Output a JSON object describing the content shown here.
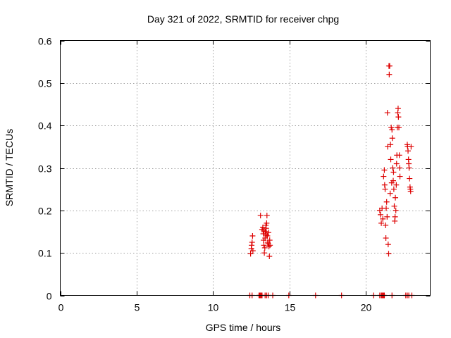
{
  "chart_data": {
    "type": "scatter",
    "title": "Day 321 of 2022, SRMTID for receiver chpg",
    "xlabel": "GPS time / hours",
    "ylabel": "SRMTID / TECUs",
    "xlim": [
      0,
      24.2
    ],
    "ylim": [
      0,
      0.6
    ],
    "xticks": [
      0,
      5,
      10,
      15,
      20
    ],
    "xtick_labels": [
      "0",
      "5",
      "10",
      "15",
      "20"
    ],
    "yticks": [
      0,
      0.1,
      0.2,
      0.3,
      0.4,
      0.5,
      0.6
    ],
    "ytick_labels": [
      "0",
      "0.1",
      "0.2",
      "0.3",
      "0.4",
      "0.5",
      "0.6"
    ],
    "grid": true,
    "legend": "none",
    "marker": "plus",
    "point_color": "#dd0000",
    "points": [
      [
        12.45,
        0.098
      ],
      [
        12.5,
        0.11
      ],
      [
        12.52,
        0.118
      ],
      [
        12.55,
        0.125
      ],
      [
        12.58,
        0.14
      ],
      [
        12.6,
        0.105
      ],
      [
        13.1,
        0.188
      ],
      [
        13.2,
        0.155
      ],
      [
        13.25,
        0.16
      ],
      [
        13.28,
        0.145
      ],
      [
        13.3,
        0.13
      ],
      [
        13.32,
        0.118
      ],
      [
        13.35,
        0.1
      ],
      [
        13.38,
        0.112
      ],
      [
        13.4,
        0.135
      ],
      [
        13.42,
        0.15
      ],
      [
        13.45,
        0.165
      ],
      [
        13.47,
        0.158
      ],
      [
        13.5,
        0.17
      ],
      [
        13.52,
        0.188
      ],
      [
        13.55,
        0.14
      ],
      [
        13.57,
        0.125
      ],
      [
        13.6,
        0.122
      ],
      [
        13.62,
        0.148
      ],
      [
        13.65,
        0.115
      ],
      [
        13.68,
        0.092
      ],
      [
        13.7,
        0.13
      ],
      [
        13.72,
        0.118
      ],
      [
        13.48,
        0.142
      ],
      [
        13.33,
        0.152
      ],
      [
        20.9,
        0.2
      ],
      [
        20.95,
        0.19
      ],
      [
        21.0,
        0.17
      ],
      [
        21.05,
        0.205
      ],
      [
        21.1,
        0.18
      ],
      [
        21.15,
        0.28
      ],
      [
        21.2,
        0.295
      ],
      [
        21.22,
        0.26
      ],
      [
        21.25,
        0.25
      ],
      [
        21.28,
        0.165
      ],
      [
        21.3,
        0.135
      ],
      [
        21.32,
        0.205
      ],
      [
        21.35,
        0.22
      ],
      [
        21.38,
        0.185
      ],
      [
        21.4,
        0.43
      ],
      [
        21.42,
        0.35
      ],
      [
        21.45,
        0.12
      ],
      [
        21.48,
        0.098
      ],
      [
        21.5,
        0.54
      ],
      [
        21.52,
        0.52
      ],
      [
        21.55,
        0.54
      ],
      [
        21.6,
        0.355
      ],
      [
        21.62,
        0.32
      ],
      [
        21.65,
        0.395
      ],
      [
        21.7,
        0.39
      ],
      [
        21.72,
        0.37
      ],
      [
        21.75,
        0.3
      ],
      [
        21.78,
        0.27
      ],
      [
        21.8,
        0.29
      ],
      [
        21.82,
        0.25
      ],
      [
        21.85,
        0.21
      ],
      [
        21.88,
        0.175
      ],
      [
        21.9,
        0.185
      ],
      [
        21.92,
        0.23
      ],
      [
        21.95,
        0.2
      ],
      [
        21.98,
        0.26
      ],
      [
        22.0,
        0.31
      ],
      [
        22.02,
        0.33
      ],
      [
        22.05,
        0.395
      ],
      [
        22.08,
        0.43
      ],
      [
        22.1,
        0.44
      ],
      [
        22.12,
        0.42
      ],
      [
        22.15,
        0.395
      ],
      [
        22.18,
        0.33
      ],
      [
        22.2,
        0.3
      ],
      [
        22.22,
        0.28
      ],
      [
        21.58,
        0.24
      ],
      [
        21.68,
        0.265
      ],
      [
        22.7,
        0.355
      ],
      [
        22.72,
        0.35
      ],
      [
        22.75,
        0.34
      ],
      [
        22.78,
        0.32
      ],
      [
        22.8,
        0.31
      ],
      [
        22.82,
        0.3
      ],
      [
        22.85,
        0.275
      ],
      [
        22.88,
        0.255
      ],
      [
        22.9,
        0.25
      ],
      [
        22.92,
        0.245
      ],
      [
        22.95,
        0.35
      ],
      [
        12.4,
        0.0
      ],
      [
        12.55,
        0.0
      ],
      [
        13.0,
        0.0
      ],
      [
        13.05,
        0.0
      ],
      [
        13.1,
        0.0
      ],
      [
        13.15,
        0.0
      ],
      [
        13.2,
        0.0
      ],
      [
        13.4,
        0.0
      ],
      [
        13.5,
        0.0
      ],
      [
        13.6,
        0.0
      ],
      [
        13.9,
        0.0
      ],
      [
        14.95,
        0.0
      ],
      [
        16.7,
        0.0
      ],
      [
        18.4,
        0.0
      ],
      [
        20.5,
        0.0
      ],
      [
        20.9,
        0.0
      ],
      [
        21.0,
        0.0
      ],
      [
        21.05,
        0.0
      ],
      [
        21.1,
        0.0
      ],
      [
        21.15,
        0.0
      ],
      [
        21.2,
        0.0
      ],
      [
        21.7,
        0.0
      ],
      [
        22.6,
        0.0
      ],
      [
        22.7,
        0.0
      ],
      [
        22.8,
        0.0
      ],
      [
        23.0,
        0.0
      ]
    ]
  }
}
